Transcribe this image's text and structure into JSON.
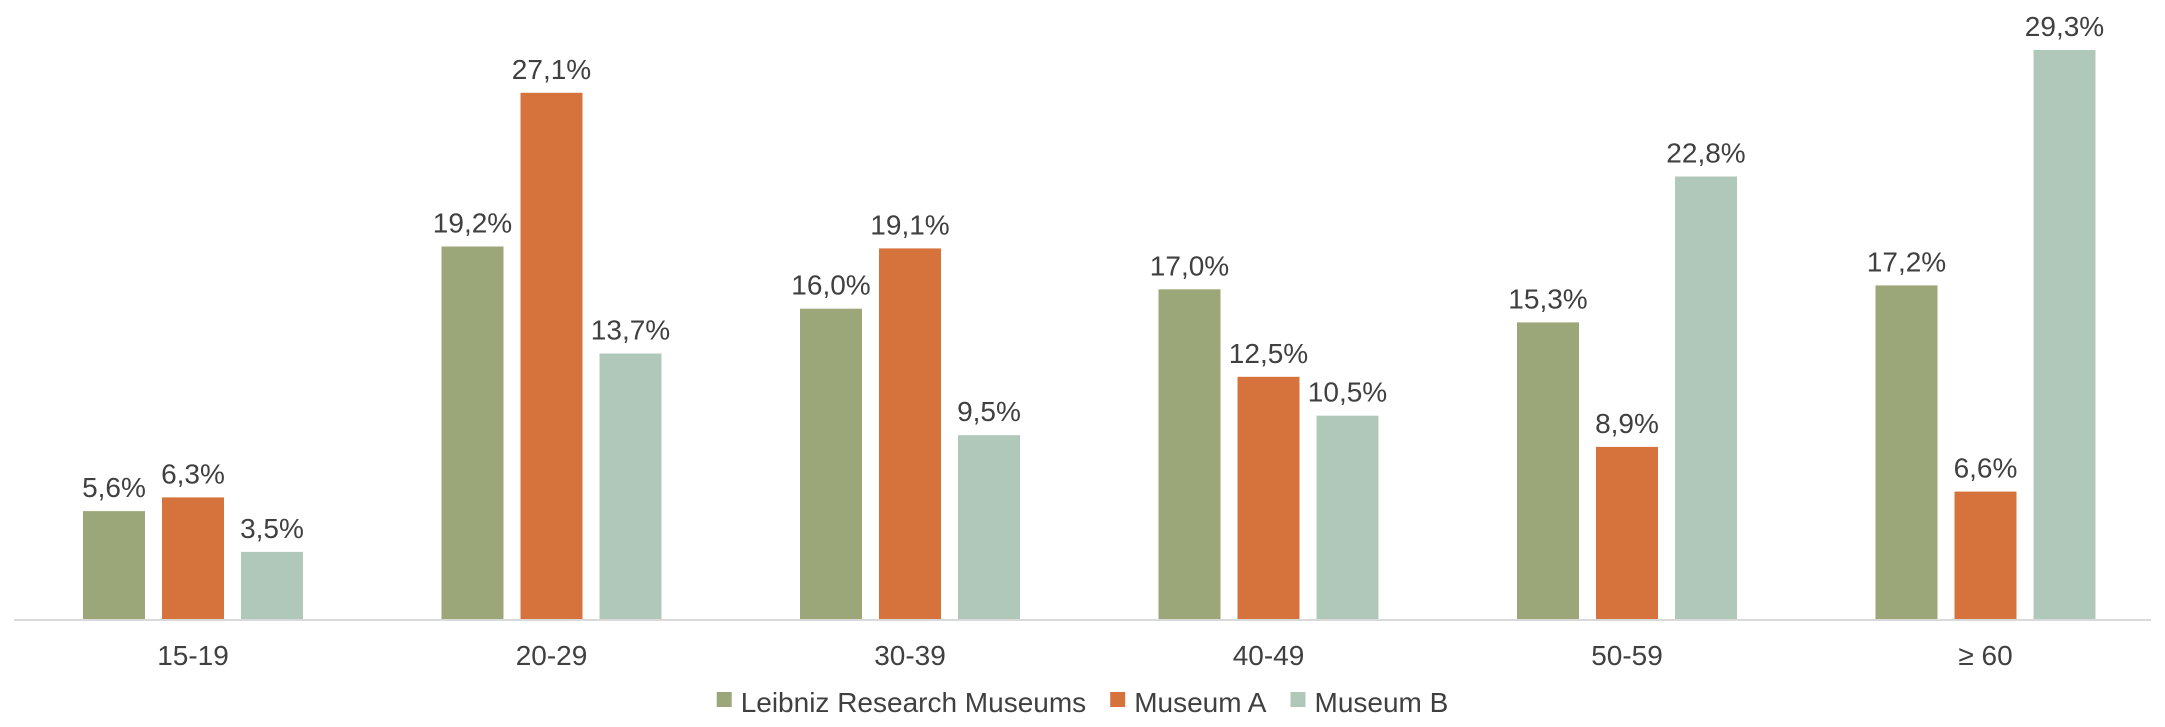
{
  "chart_data": {
    "type": "bar",
    "title": "",
    "xlabel": "",
    "ylabel": "",
    "categories": [
      "15-19",
      "20-29",
      "30-39",
      "40-49",
      "50-59",
      "≥ 60"
    ],
    "series": [
      {
        "name": "Leibniz Research Museums",
        "color": "#9ba779",
        "values": [
          5.6,
          19.2,
          16.0,
          17.0,
          15.3,
          17.2
        ],
        "labels": [
          "5,6%",
          "19,2%",
          "16,0%",
          "17,0%",
          "15,3%",
          "17,2%"
        ]
      },
      {
        "name": "Museum A",
        "color": "#d6733c",
        "values": [
          6.3,
          27.1,
          19.1,
          12.5,
          8.9,
          6.6
        ],
        "labels": [
          "6,3%",
          "27,1%",
          "19,1%",
          "12,5%",
          "8,9%",
          "6,6%"
        ]
      },
      {
        "name": "Museum B",
        "color": "#b0c8b9",
        "values": [
          3.5,
          13.7,
          9.5,
          10.5,
          22.8,
          29.3
        ],
        "labels": [
          "3,5%",
          "13,7%",
          "9,5%",
          "10,5%",
          "22,8%",
          "29,3%"
        ]
      }
    ],
    "ylim": [
      0,
      30
    ],
    "grid": false,
    "legend": "bottom-center"
  }
}
